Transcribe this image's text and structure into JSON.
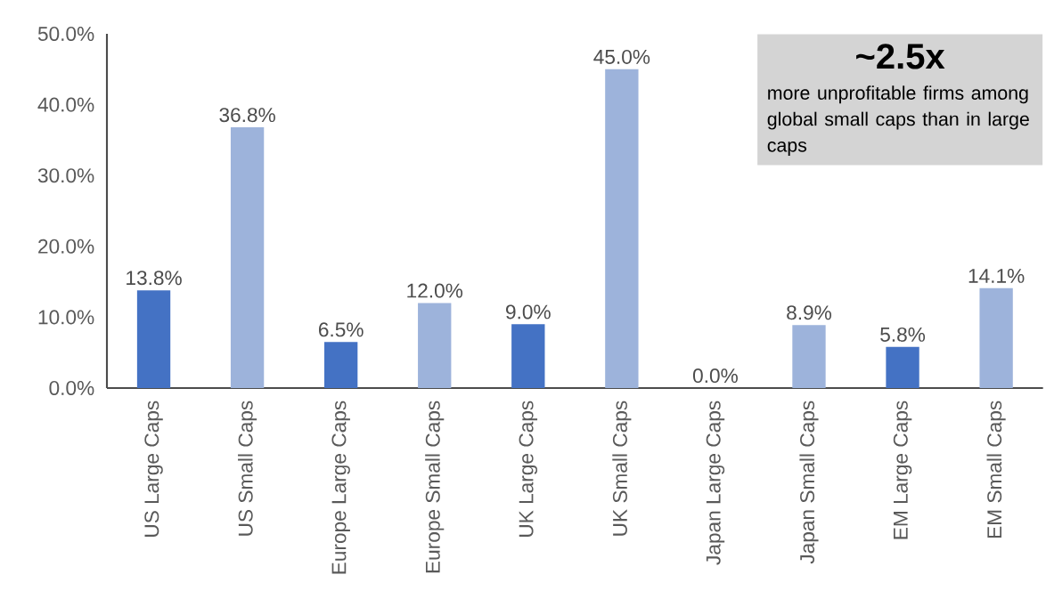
{
  "chart_data": {
    "type": "bar",
    "categories": [
      "US Large Caps",
      "US Small Caps",
      "Europe Large Caps",
      "Europe Small Caps",
      "UK Large Caps",
      "UK Small Caps",
      "Japan Large Caps",
      "Japan Small Caps",
      "EM Large Caps",
      "EM Small Caps"
    ],
    "values": [
      13.8,
      36.8,
      6.5,
      12.0,
      9.0,
      45.0,
      0.0,
      8.9,
      5.8,
      14.1
    ],
    "value_labels": [
      "13.8%",
      "36.8%",
      "6.5%",
      "12.0%",
      "9.0%",
      "45.0%",
      "0.0%",
      "8.9%",
      "5.8%",
      "14.1%"
    ],
    "colors": [
      "#4472c4",
      "#9db3db",
      "#4472c4",
      "#9db3db",
      "#4472c4",
      "#9db3db",
      "#4472c4",
      "#9db3db",
      "#4472c4",
      "#9db3db"
    ],
    "ylim": [
      0,
      50
    ],
    "yticks": [
      {
        "value": 0,
        "label": "0.0%"
      },
      {
        "value": 10,
        "label": "10.0%"
      },
      {
        "value": 20,
        "label": "20.0%"
      },
      {
        "value": 30,
        "label": "30.0%"
      },
      {
        "value": 40,
        "label": "40.0%"
      },
      {
        "value": 50,
        "label": "50.0%"
      }
    ],
    "grid": false,
    "annotations": [
      "**~2.5x**",
      "more unprofitable firms among global small caps than in large caps"
    ]
  }
}
